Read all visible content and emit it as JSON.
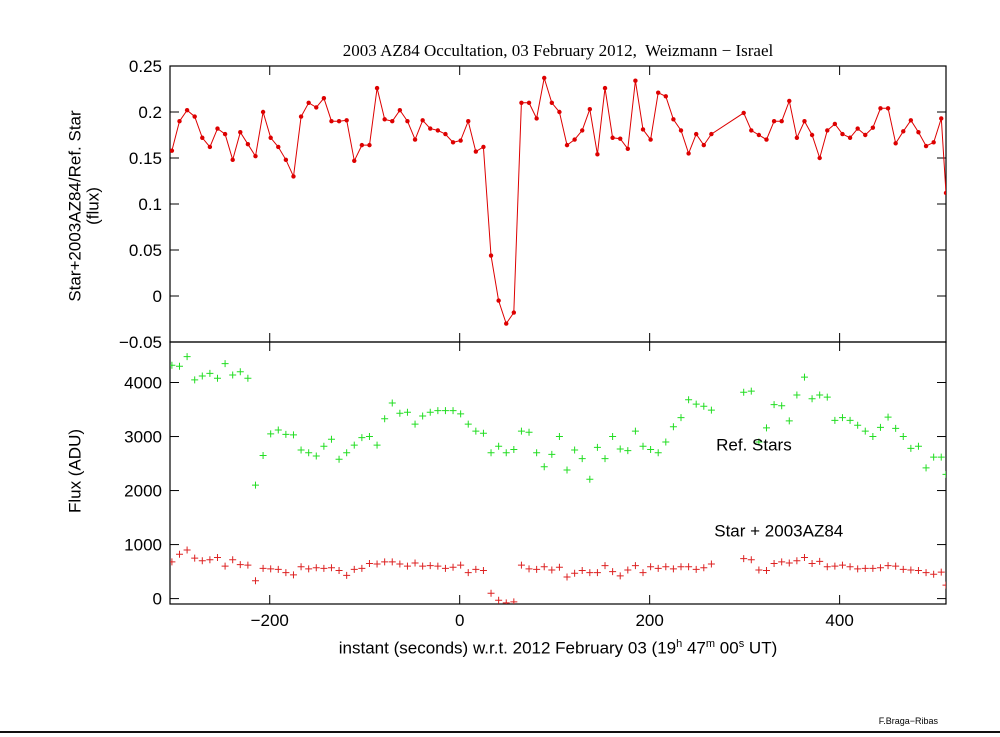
{
  "chart_data": [
    {
      "type": "line",
      "title": "2003 AZ84 Occultation, 03 February 2012,  Weizmann − Israel",
      "ylabel": "Star+2003AZ84/Ref. Star",
      "ylabel2": "(flux)",
      "xlim": [
        -305,
        512
      ],
      "ylim": [
        -0.05,
        0.25
      ],
      "yticks": [
        "0.25",
        "0.2",
        "0.15",
        "0.1",
        "0.05",
        "0",
        "−0.05"
      ],
      "ytick_values": [
        0.25,
        0.2,
        0.15,
        0.1,
        0.05,
        0,
        -0.05
      ],
      "xtick_values": [
        -200,
        0,
        200,
        400
      ],
      "grid": false,
      "series": [
        {
          "color": "#dd0000",
          "x": [
            -303,
            -295,
            -287,
            -279,
            -271,
            -263,
            -255,
            -247,
            -239,
            -231,
            -223,
            -215,
            -207,
            -199,
            -191,
            -183,
            -175,
            -167,
            -159,
            -151,
            -143,
            -135,
            -127,
            -119,
            -111,
            -103,
            -95,
            -87,
            -79,
            -71,
            -63,
            -55,
            -47,
            -39,
            -31,
            -23,
            -15,
            -7,
            1,
            9,
            17,
            25,
            33,
            41,
            49,
            57,
            65,
            73,
            81,
            89,
            97,
            105,
            113,
            121,
            129,
            137,
            145,
            153,
            161,
            169,
            177,
            185,
            193,
            201,
            209,
            217,
            225,
            233,
            241,
            249,
            257,
            265,
            299,
            307,
            315,
            323,
            331,
            339,
            347,
            355,
            363,
            371,
            379,
            387,
            395,
            403,
            411,
            419,
            427,
            435,
            443,
            451,
            459,
            467,
            475,
            483,
            491,
            499,
            507,
            512
          ],
          "y": [
            0.158,
            0.19,
            0.202,
            0.195,
            0.172,
            0.162,
            0.182,
            0.176,
            0.148,
            0.178,
            0.165,
            0.152,
            0.2,
            0.172,
            0.162,
            0.148,
            0.13,
            0.195,
            0.21,
            0.205,
            0.215,
            0.19,
            0.19,
            0.191,
            0.147,
            0.164,
            0.164,
            0.226,
            0.192,
            0.19,
            0.202,
            0.19,
            0.17,
            0.191,
            0.182,
            0.18,
            0.176,
            0.167,
            0.169,
            0.19,
            0.157,
            0.162,
            0.044,
            -0.005,
            -0.03,
            -0.018,
            0.21,
            0.21,
            0.193,
            0.237,
            0.21,
            0.2,
            0.164,
            0.17,
            0.18,
            0.203,
            0.154,
            0.226,
            0.172,
            0.171,
            0.16,
            0.234,
            0.181,
            0.17,
            0.221,
            0.217,
            0.192,
            0.18,
            0.155,
            0.176,
            0.164,
            0.176,
            0.199,
            0.18,
            0.175,
            0.17,
            0.19,
            0.19,
            0.212,
            0.172,
            0.19,
            0.175,
            0.15,
            0.18,
            0.187,
            0.176,
            0.172,
            0.182,
            0.175,
            0.183,
            0.204,
            0.204,
            0.166,
            0.179,
            0.191,
            0.178,
            0.163,
            0.167,
            0.193,
            0.112
          ]
        }
      ]
    },
    {
      "type": "scatter",
      "ylabel": "Flux (ADU)",
      "xlabel": "instant (seconds) w.r.t. 2012 February 03 (19",
      "xlabel_sup1": "h",
      "xlabel_mid1": " 47",
      "xlabel_sup2": "m",
      "xlabel_mid2": " 00",
      "xlabel_sup3": "s",
      "xlabel_end": " UT)",
      "xlim": [
        -305,
        512
      ],
      "ylim": [
        -100,
        4750
      ],
      "yticks": [
        "4000",
        "3000",
        "2000",
        "1000",
        "0"
      ],
      "ytick_values": [
        4000,
        3000,
        2000,
        1000,
        0
      ],
      "xticks": [
        "−200",
        "0",
        "200",
        "400"
      ],
      "xtick_values": [
        -200,
        0,
        200,
        400
      ],
      "grid": false,
      "annotations": [
        {
          "text": "Ref. Stars",
          "x": 270,
          "y": 2740
        },
        {
          "text": "Star + 2003AZ84",
          "x": 268,
          "y": 1150
        }
      ],
      "series": [
        {
          "name": "Ref. Stars",
          "color": "#22dd22",
          "x": [
            -303,
            -295,
            -287,
            -279,
            -271,
            -263,
            -255,
            -247,
            -239,
            -231,
            -223,
            -215,
            -207,
            -199,
            -191,
            -183,
            -175,
            -167,
            -159,
            -151,
            -143,
            -135,
            -127,
            -119,
            -111,
            -103,
            -95,
            -87,
            -79,
            -71,
            -63,
            -55,
            -47,
            -39,
            -31,
            -23,
            -15,
            -7,
            1,
            9,
            17,
            25,
            33,
            41,
            49,
            57,
            65,
            73,
            81,
            89,
            97,
            105,
            113,
            121,
            129,
            137,
            145,
            153,
            161,
            169,
            177,
            185,
            193,
            201,
            209,
            217,
            225,
            233,
            241,
            249,
            257,
            265,
            299,
            307,
            315,
            323,
            331,
            339,
            347,
            355,
            363,
            371,
            379,
            387,
            395,
            403,
            411,
            419,
            427,
            435,
            443,
            451,
            459,
            467,
            475,
            483,
            491,
            499,
            507,
            512
          ],
          "y": [
            4320,
            4300,
            4480,
            4050,
            4120,
            4170,
            4080,
            4350,
            4140,
            4200,
            4080,
            2100,
            2650,
            3050,
            3120,
            3040,
            3030,
            2750,
            2700,
            2640,
            2820,
            2950,
            2580,
            2700,
            2840,
            2980,
            3000,
            2840,
            3330,
            3620,
            3430,
            3450,
            3230,
            3380,
            3450,
            3480,
            3480,
            3480,
            3420,
            3230,
            3100,
            3060,
            2700,
            2820,
            2700,
            2760,
            3100,
            3080,
            2700,
            2440,
            2670,
            3000,
            2380,
            2750,
            2590,
            2210,
            2800,
            2590,
            3000,
            2770,
            2740,
            3100,
            2820,
            2760,
            2700,
            2900,
            3180,
            3350,
            3680,
            3600,
            3560,
            3490,
            3820,
            3840,
            2900,
            3160,
            3590,
            3570,
            3290,
            3770,
            4100,
            3700,
            3770,
            3730,
            3300,
            3350,
            3300,
            3210,
            3100,
            3000,
            3170,
            3360,
            3150,
            3000,
            2780,
            2820,
            2420,
            2620,
            2620,
            2300
          ]
        },
        {
          "name": "Star + 2003AZ84",
          "color": "#dd2222",
          "x": [
            -303,
            -295,
            -287,
            -279,
            -271,
            -263,
            -255,
            -247,
            -239,
            -231,
            -223,
            -215,
            -207,
            -199,
            -191,
            -183,
            -175,
            -167,
            -159,
            -151,
            -143,
            -135,
            -127,
            -119,
            -111,
            -103,
            -95,
            -87,
            -79,
            -71,
            -63,
            -55,
            -47,
            -39,
            -31,
            -23,
            -15,
            -7,
            1,
            9,
            17,
            25,
            33,
            41,
            49,
            57,
            65,
            73,
            81,
            89,
            97,
            105,
            113,
            121,
            129,
            137,
            145,
            153,
            161,
            169,
            177,
            185,
            193,
            201,
            209,
            217,
            225,
            233,
            241,
            249,
            257,
            265,
            299,
            307,
            315,
            323,
            331,
            339,
            347,
            355,
            363,
            371,
            379,
            387,
            395,
            403,
            411,
            419,
            427,
            435,
            443,
            451,
            459,
            467,
            475,
            483,
            491,
            499,
            507,
            512
          ],
          "y": [
            680,
            820,
            900,
            750,
            700,
            720,
            760,
            600,
            720,
            630,
            620,
            330,
            560,
            550,
            540,
            480,
            440,
            590,
            550,
            570,
            560,
            570,
            520,
            430,
            540,
            560,
            650,
            640,
            680,
            680,
            640,
            600,
            660,
            600,
            610,
            600,
            560,
            580,
            620,
            480,
            540,
            520,
            100,
            -30,
            -80,
            -60,
            620,
            550,
            540,
            590,
            530,
            580,
            400,
            470,
            520,
            480,
            480,
            610,
            500,
            420,
            530,
            610,
            480,
            590,
            560,
            590,
            550,
            590,
            590,
            540,
            570,
            640,
            740,
            720,
            530,
            520,
            650,
            680,
            660,
            700,
            760,
            650,
            690,
            590,
            600,
            620,
            590,
            550,
            560,
            560,
            570,
            610,
            600,
            540,
            530,
            520,
            480,
            450,
            490,
            250
          ]
        }
      ]
    }
  ],
  "credit": "F.Braga−Ribas"
}
